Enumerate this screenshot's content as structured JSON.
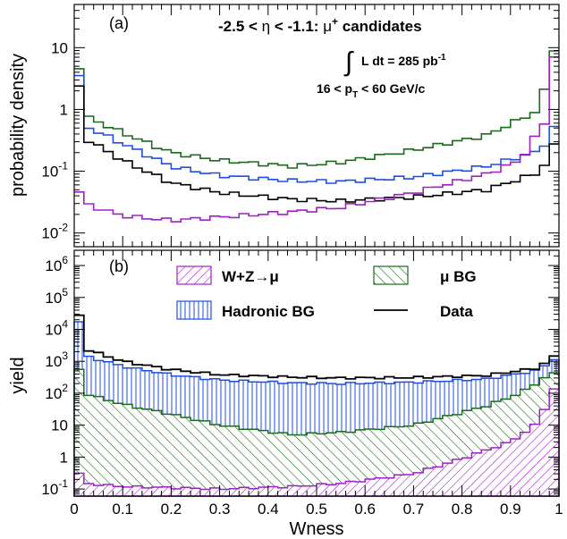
{
  "chart_data": [
    {
      "type": "line",
      "panel_label": "(a)",
      "ylabel": "probability density",
      "yscale": "log",
      "ylim": [
        0.006,
        50
      ],
      "xlim": [
        0,
        1
      ],
      "yticks": [
        {
          "v": 0.01,
          "base": "10",
          "exp": "-2"
        },
        {
          "v": 0.1,
          "base": "10",
          "exp": "-1"
        },
        {
          "v": 1,
          "base": "1",
          "exp": ""
        },
        {
          "v": 10,
          "base": "10",
          "exp": ""
        }
      ],
      "annotations": {
        "title": {
          "pre": "-2.5 < ",
          "eta1": "η",
          "mid": " < -1.1: ",
          "mu": "μ",
          "sup": "+",
          "post": " candidates"
        },
        "lumi": {
          "integral": "∫",
          "text": "L dt = 285 pb",
          "sup": "-1"
        },
        "pt": {
          "pre": "16 < p",
          "sub": "T",
          "post": " < 60 GeV/c"
        }
      },
      "series": [
        {
          "key": "green",
          "color": "#1a6b1a",
          "anchors": [
            [
              0,
              30
            ],
            [
              0.02,
              0.8
            ],
            [
              0.1,
              0.42
            ],
            [
              0.2,
              0.2
            ],
            [
              0.3,
              0.15
            ],
            [
              0.45,
              0.12
            ],
            [
              0.55,
              0.14
            ],
            [
              0.7,
              0.22
            ],
            [
              0.85,
              0.38
            ],
            [
              0.95,
              0.9
            ],
            [
              0.98,
              3
            ],
            [
              1,
              30
            ]
          ]
        },
        {
          "key": "blue",
          "color": "#1f4fe0",
          "anchors": [
            [
              0,
              20
            ],
            [
              0.02,
              0.55
            ],
            [
              0.1,
              0.28
            ],
            [
              0.2,
              0.12
            ],
            [
              0.3,
              0.085
            ],
            [
              0.45,
              0.07
            ],
            [
              0.55,
              0.068
            ],
            [
              0.7,
              0.08
            ],
            [
              0.85,
              0.12
            ],
            [
              0.95,
              0.2
            ],
            [
              0.98,
              0.32
            ],
            [
              1,
              0.8
            ]
          ]
        },
        {
          "key": "black",
          "color": "#000000",
          "anchors": [
            [
              0,
              15
            ],
            [
              0.02,
              0.35
            ],
            [
              0.1,
              0.15
            ],
            [
              0.2,
              0.065
            ],
            [
              0.3,
              0.045
            ],
            [
              0.45,
              0.035
            ],
            [
              0.55,
              0.033
            ],
            [
              0.7,
              0.038
            ],
            [
              0.85,
              0.05
            ],
            [
              0.95,
              0.09
            ],
            [
              0.98,
              0.15
            ],
            [
              1,
              0.45
            ]
          ]
        },
        {
          "key": "purple",
          "color": "#a020c8",
          "anchors": [
            [
              0,
              0.07
            ],
            [
              0.02,
              0.03
            ],
            [
              0.1,
              0.019
            ],
            [
              0.2,
              0.016
            ],
            [
              0.3,
              0.018
            ],
            [
              0.45,
              0.022
            ],
            [
              0.55,
              0.026
            ],
            [
              0.7,
              0.045
            ],
            [
              0.85,
              0.09
            ],
            [
              0.92,
              0.15
            ],
            [
              0.97,
              0.6
            ],
            [
              1,
              25
            ]
          ]
        }
      ]
    },
    {
      "type": "area",
      "panel_label": "(b)",
      "ylabel": "yield",
      "xlabel": "Wness",
      "yscale": "log",
      "ylim": [
        0.06,
        3000000
      ],
      "xlim": [
        0,
        1
      ],
      "xticks": [
        "0",
        "0.1",
        "0.2",
        "0.3",
        "0.4",
        "0.5",
        "0.6",
        "0.7",
        "0.8",
        "0.9",
        "1"
      ],
      "yticks": [
        {
          "v": 0.1,
          "base": "10",
          "exp": "-1"
        },
        {
          "v": 1,
          "base": "1",
          "exp": ""
        },
        {
          "v": 10,
          "base": "10",
          "exp": ""
        },
        {
          "v": 100,
          "base": "10",
          "exp": "2"
        },
        {
          "v": 1000,
          "base": "10",
          "exp": "3"
        },
        {
          "v": 10000,
          "base": "10",
          "exp": "4"
        },
        {
          "v": 100000,
          "base": "10",
          "exp": "5"
        },
        {
          "v": 1000000,
          "base": "10",
          "exp": "6"
        }
      ],
      "legend": [
        {
          "label": "W+Z→μ",
          "style": "hatch-purple"
        },
        {
          "label": "μ BG",
          "style": "hatch-green"
        },
        {
          "label": "Hadronic BG",
          "style": "hatch-blue"
        },
        {
          "label": "Data",
          "style": "line-black"
        }
      ],
      "series": [
        {
          "key": "stack_top",
          "color": "#1f4fe0",
          "anchors": [
            [
              0,
              200000
            ],
            [
              0.02,
              1500
            ],
            [
              0.1,
              700
            ],
            [
              0.2,
              380
            ],
            [
              0.3,
              260
            ],
            [
              0.45,
              210
            ],
            [
              0.55,
              200
            ],
            [
              0.7,
              220
            ],
            [
              0.85,
              280
            ],
            [
              0.95,
              500
            ],
            [
              0.98,
              900
            ],
            [
              1,
              1500
            ]
          ]
        },
        {
          "key": "green_top",
          "color": "#1a6b1a",
          "anchors": [
            [
              0,
              3000
            ],
            [
              0.02,
              100
            ],
            [
              0.1,
              45
            ],
            [
              0.2,
              22
            ],
            [
              0.3,
              10
            ],
            [
              0.45,
              5
            ],
            [
              0.55,
              6
            ],
            [
              0.7,
              10
            ],
            [
              0.85,
              40
            ],
            [
              0.92,
              100
            ],
            [
              0.97,
              300
            ],
            [
              1,
              500
            ]
          ]
        },
        {
          "key": "purple_top",
          "color": "#a020c8",
          "anchors": [
            [
              0,
              0.6
            ],
            [
              0.02,
              0.15
            ],
            [
              0.1,
              0.12
            ],
            [
              0.2,
              0.11
            ],
            [
              0.3,
              0.1
            ],
            [
              0.45,
              0.12
            ],
            [
              0.55,
              0.15
            ],
            [
              0.7,
              0.3
            ],
            [
              0.8,
              0.9
            ],
            [
              0.9,
              3
            ],
            [
              0.95,
              10
            ],
            [
              0.98,
              60
            ],
            [
              1,
              300
            ]
          ]
        },
        {
          "key": "data",
          "color": "#000000",
          "anchors": [
            [
              0,
              300000
            ],
            [
              0.02,
              2500
            ],
            [
              0.1,
              1000
            ],
            [
              0.2,
              550
            ],
            [
              0.3,
              380
            ],
            [
              0.45,
              320
            ],
            [
              0.55,
              300
            ],
            [
              0.7,
              310
            ],
            [
              0.85,
              360
            ],
            [
              0.95,
              600
            ],
            [
              0.98,
              1000
            ],
            [
              1,
              2000
            ]
          ]
        }
      ]
    }
  ]
}
